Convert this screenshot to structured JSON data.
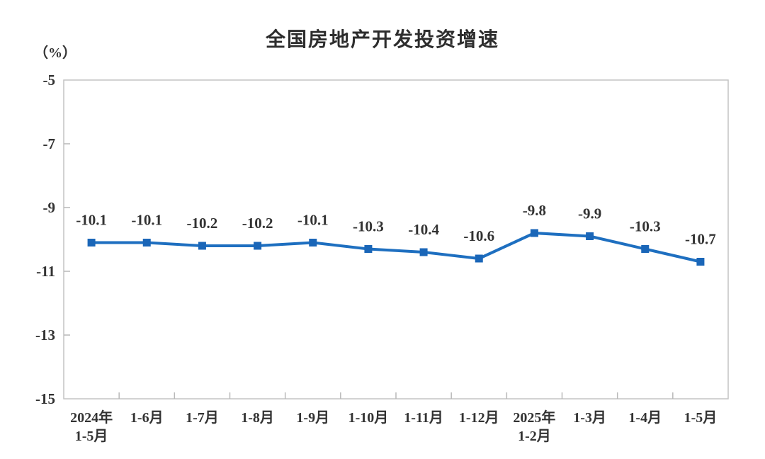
{
  "chart": {
    "title": "全国房地产开发投资增速",
    "unit_label": "（%）"
  },
  "colors": {
    "line": "#1e6fc0",
    "marker": "#1a66b8",
    "axis_border": "#c4c4c4",
    "tick": "#b8b8b8",
    "text": "#333333"
  },
  "chart_data": {
    "type": "line",
    "title": "全国房地产开发投资增速",
    "ylabel": "（%）",
    "categories": [
      [
        "2024年",
        "1-5月"
      ],
      [
        "1-6月"
      ],
      [
        "1-7月"
      ],
      [
        "1-8月"
      ],
      [
        "1-9月"
      ],
      [
        "1-10月"
      ],
      [
        "1-11月"
      ],
      [
        "1-12月"
      ],
      [
        "2025年",
        "1-2月"
      ],
      [
        "1-3月"
      ],
      [
        "1-4月"
      ],
      [
        "1-5月"
      ]
    ],
    "values": [
      -10.1,
      -10.1,
      -10.2,
      -10.2,
      -10.1,
      -10.3,
      -10.4,
      -10.6,
      -9.8,
      -9.9,
      -10.3,
      -10.7
    ],
    "point_labels": [
      "-10.1",
      "-10.1",
      "-10.2",
      "-10.2",
      "-10.1",
      "-10.3",
      "-10.4",
      "-10.6",
      "-9.8",
      "-9.9",
      "-10.3",
      "-10.7"
    ],
    "yticks": [
      -5,
      -7,
      -9,
      -11,
      -13,
      -15
    ],
    "ytick_labels": [
      "-5",
      "-7",
      "-9",
      "-11",
      "-13",
      "-15"
    ],
    "ylim": [
      -15,
      -5
    ],
    "grid": false,
    "legend": "none",
    "marker": "square"
  }
}
